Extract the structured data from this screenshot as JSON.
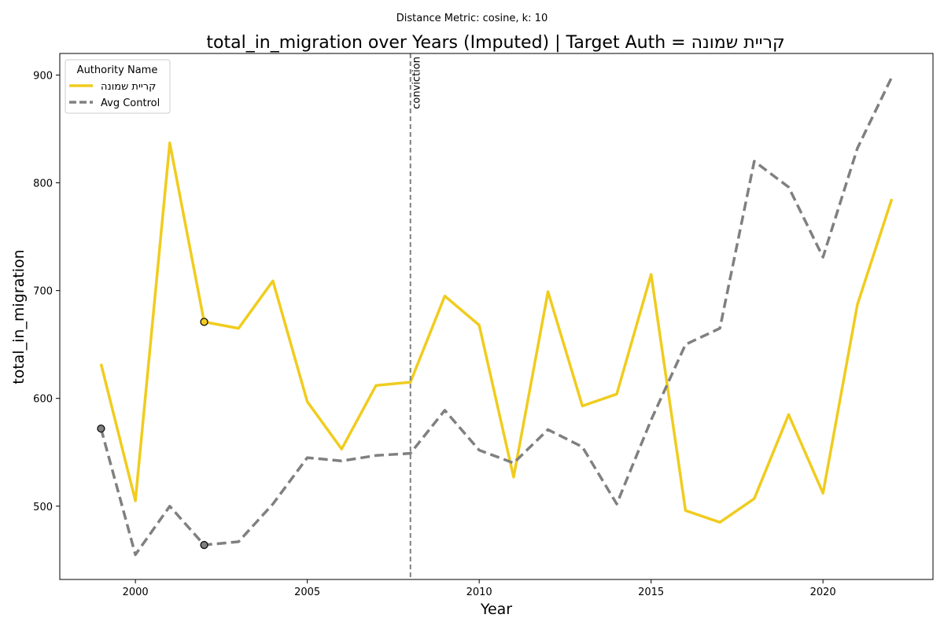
{
  "chart_data": {
    "type": "line",
    "suptitle": "Distance Metric: cosine, k: 10",
    "title": "total_in_migration over Years (Imputed) | Target Auth = קריית שמונה",
    "xlabel": "Year",
    "ylabel": "total_in_migration",
    "xlim": [
      1997.8,
      2023.2
    ],
    "ylim": [
      432,
      920
    ],
    "xticks": [
      2000,
      2005,
      2010,
      2015,
      2020
    ],
    "yticks": [
      500,
      600,
      700,
      800,
      900
    ],
    "grid": false,
    "legend": {
      "title": "Authority Name",
      "placement": "top-left"
    },
    "x": [
      1999,
      2000,
      2001,
      2002,
      2003,
      2004,
      2005,
      2006,
      2007,
      2008,
      2009,
      2010,
      2011,
      2012,
      2013,
      2014,
      2015,
      2016,
      2017,
      2018,
      2019,
      2020,
      2021,
      2022
    ],
    "series": [
      {
        "name": "קריית שמונה",
        "color": "#f0cc1e",
        "style": "solid",
        "values": [
          632,
          505,
          837,
          671,
          665,
          709,
          597,
          553,
          612,
          615,
          695,
          668,
          527,
          699,
          593,
          604,
          715,
          496,
          485,
          507,
          585,
          512,
          687,
          785
        ]
      },
      {
        "name": "Avg Control",
        "color": "#808080",
        "style": "dashed",
        "values": [
          572,
          455,
          500,
          464,
          467,
          502,
          545,
          542,
          547,
          549,
          589,
          552,
          540,
          571,
          555,
          502,
          580,
          650,
          665,
          820,
          796,
          731,
          832,
          898
        ]
      }
    ],
    "imputed_markers": [
      {
        "series": 0,
        "x": 2002,
        "y": 671
      },
      {
        "series": 1,
        "x": 1999,
        "y": 572
      },
      {
        "series": 1,
        "x": 2002,
        "y": 464
      }
    ],
    "vline": {
      "x": 2008,
      "label": "conviction",
      "color": "#808080"
    }
  }
}
